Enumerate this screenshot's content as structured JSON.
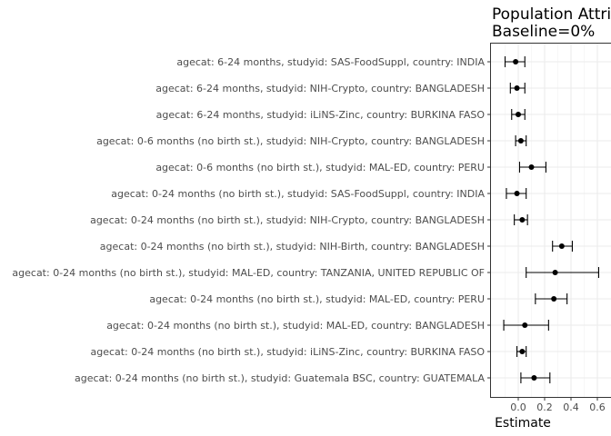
{
  "chart_data": {
    "type": "scatter",
    "title": "Population Attributable Fraction",
    "subtitle": "Baseline=0%",
    "xlabel": "Estimate",
    "ylabel": "",
    "xlim": [
      -0.18,
      0.62
    ],
    "xticks": [
      "0.0",
      "0.2",
      "0.4",
      "0.6"
    ],
    "xtick_values": [
      0.0,
      0.2,
      0.4,
      0.6
    ],
    "grid": true,
    "categories": [
      "agecat: 6-24 months, studyid: SAS-FoodSuppl, country: INDIA",
      "agecat: 6-24 months, studyid: NIH-Crypto, country: BANGLADESH",
      "agecat: 6-24 months, studyid: iLiNS-Zinc, country: BURKINA FASO",
      "agecat: 0-6 months (no birth st.), studyid: NIH-Crypto, country: BANGLADESH",
      "agecat: 0-6 months (no birth st.), studyid: MAL-ED, country: PERU",
      "agecat: 0-24 months (no birth st.), studyid: SAS-FoodSuppl, country: INDIA",
      "agecat: 0-24 months (no birth st.), studyid: NIH-Crypto, country: BANGLADESH",
      "agecat: 0-24 months (no birth st.), studyid: NIH-Birth, country: BANGLADESH",
      "agecat: 0-24 months (no birth st.), studyid: MAL-ED, country: TANZANIA, UNITED REPUBLIC OF",
      "agecat: 0-24 months (no birth st.), studyid: MAL-ED, country: PERU",
      "agecat: 0-24 months (no birth st.), studyid: MAL-ED, country: BANGLADESH",
      "agecat: 0-24 months (no birth st.), studyid: iLiNS-Zinc, country: BURKINA FASO",
      "agecat: 0-24 months (no birth st.), studyid: Guatemala BSC, country: GUATEMALA"
    ],
    "estimates": [
      -0.02,
      -0.01,
      0.0,
      0.02,
      0.1,
      -0.01,
      0.03,
      0.33,
      0.28,
      0.27,
      0.05,
      0.03,
      0.12
    ],
    "ci_lower": [
      -0.1,
      -0.06,
      -0.05,
      -0.02,
      0.01,
      -0.09,
      -0.03,
      0.26,
      0.06,
      0.13,
      -0.11,
      -0.01,
      0.02
    ],
    "ci_upper": [
      0.05,
      0.05,
      0.05,
      0.06,
      0.21,
      0.06,
      0.07,
      0.41,
      0.61,
      0.37,
      0.23,
      0.06,
      0.24
    ]
  }
}
